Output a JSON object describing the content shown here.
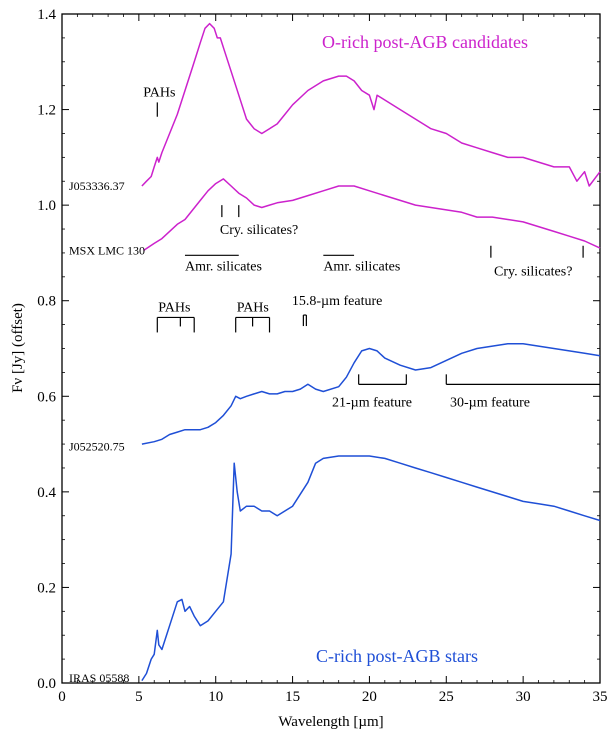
{
  "chart_data": {
    "type": "line",
    "xlabel": "Wavelength [µm]",
    "ylabel": "Fν [Jy] (offset)",
    "xlim": [
      0,
      35
    ],
    "ylim": [
      0,
      1.4
    ],
    "x_ticks": [
      0,
      5,
      10,
      15,
      20,
      25,
      30,
      35
    ],
    "y_ticks": [
      0.0,
      0.2,
      0.4,
      0.6,
      0.8,
      1.0,
      1.2,
      1.4
    ],
    "y_tick_labels": [
      "0.0",
      "0.2",
      "0.4",
      "0.6",
      "0.8",
      "1.0",
      "1.2",
      "1.4"
    ],
    "colors": {
      "o_rich": "#cc22cc",
      "c_rich": "#1f4fd6"
    },
    "group_titles": [
      {
        "text": "O-rich post-AGB candidates",
        "color": "#cc22cc"
      },
      {
        "text": "C-rich post-AGB stars",
        "color": "#1f4fd6"
      }
    ],
    "series": [
      {
        "name": "J053336.37",
        "color": "#cc22cc",
        "x": [
          5.2,
          5.5,
          5.8,
          6.0,
          6.2,
          6.3,
          6.5,
          7.0,
          7.5,
          8.0,
          8.5,
          9.0,
          9.3,
          9.6,
          9.9,
          10.1,
          10.3,
          10.6,
          11.0,
          11.5,
          12.0,
          12.5,
          13.0,
          13.5,
          14.0,
          14.5,
          15.0,
          16.0,
          17.0,
          18.0,
          18.5,
          19.0,
          19.5,
          20.0,
          20.3,
          20.5,
          21.0,
          22.0,
          23.0,
          24.0,
          25.0,
          26.0,
          27.0,
          28.0,
          29.0,
          30.0,
          31.0,
          32.0,
          33.0,
          33.5,
          34.0,
          34.3,
          35.0
        ],
        "y": [
          1.04,
          1.05,
          1.06,
          1.08,
          1.1,
          1.09,
          1.11,
          1.15,
          1.19,
          1.24,
          1.29,
          1.34,
          1.37,
          1.38,
          1.37,
          1.35,
          1.35,
          1.32,
          1.28,
          1.23,
          1.18,
          1.16,
          1.15,
          1.16,
          1.17,
          1.19,
          1.21,
          1.24,
          1.26,
          1.27,
          1.27,
          1.26,
          1.24,
          1.23,
          1.2,
          1.23,
          1.22,
          1.2,
          1.18,
          1.16,
          1.15,
          1.13,
          1.12,
          1.11,
          1.1,
          1.1,
          1.09,
          1.08,
          1.08,
          1.05,
          1.07,
          1.04,
          1.07
        ]
      },
      {
        "name": "MSX LMC 130",
        "color": "#cc22cc",
        "x": [
          5.3,
          6.0,
          6.5,
          7.0,
          7.5,
          8.0,
          8.5,
          9.0,
          9.5,
          10.0,
          10.5,
          11.0,
          11.5,
          12.0,
          12.5,
          13.0,
          13.5,
          14.0,
          15.0,
          16.0,
          17.0,
          18.0,
          19.0,
          20.0,
          21.0,
          22.0,
          23.0,
          24.0,
          25.0,
          26.0,
          27.0,
          28.0,
          29.0,
          30.0,
          31.0,
          32.0,
          33.0,
          34.0,
          35.0
        ],
        "y": [
          0.905,
          0.92,
          0.93,
          0.945,
          0.96,
          0.97,
          0.99,
          1.01,
          1.03,
          1.045,
          1.055,
          1.04,
          1.025,
          1.015,
          1.0,
          0.995,
          1.0,
          1.005,
          1.01,
          1.02,
          1.03,
          1.04,
          1.04,
          1.03,
          1.02,
          1.01,
          1.0,
          0.995,
          0.99,
          0.985,
          0.975,
          0.975,
          0.97,
          0.965,
          0.955,
          0.945,
          0.935,
          0.925,
          0.91
        ]
      },
      {
        "name": "J052520.75",
        "color": "#1f4fd6",
        "x": [
          5.2,
          6.0,
          6.5,
          7.0,
          7.5,
          8.0,
          8.5,
          9.0,
          9.5,
          10.0,
          10.5,
          11.0,
          11.3,
          11.6,
          12.0,
          12.5,
          13.0,
          13.5,
          14.0,
          14.5,
          15.0,
          15.5,
          16.0,
          16.5,
          17.0,
          18.0,
          18.5,
          19.0,
          19.5,
          20.0,
          20.5,
          21.0,
          22.0,
          23.0,
          24.0,
          25.0,
          26.0,
          27.0,
          28.0,
          29.0,
          30.0,
          31.0,
          32.0,
          33.0,
          34.0,
          35.0
        ],
        "y": [
          0.5,
          0.505,
          0.51,
          0.52,
          0.525,
          0.53,
          0.53,
          0.53,
          0.535,
          0.545,
          0.56,
          0.58,
          0.6,
          0.595,
          0.6,
          0.605,
          0.61,
          0.605,
          0.605,
          0.61,
          0.61,
          0.615,
          0.625,
          0.615,
          0.61,
          0.62,
          0.64,
          0.67,
          0.695,
          0.7,
          0.695,
          0.68,
          0.665,
          0.655,
          0.66,
          0.675,
          0.69,
          0.7,
          0.705,
          0.71,
          0.71,
          0.705,
          0.7,
          0.695,
          0.69,
          0.685
        ]
      },
      {
        "name": "IRAS 05588",
        "color": "#1f4fd6",
        "x": [
          5.2,
          5.5,
          5.8,
          6.0,
          6.2,
          6.3,
          6.5,
          7.0,
          7.5,
          7.8,
          8.0,
          8.3,
          8.6,
          9.0,
          9.5,
          10.0,
          10.5,
          11.0,
          11.2,
          11.4,
          11.6,
          12.0,
          12.5,
          13.0,
          13.5,
          14.0,
          15.0,
          16.0,
          16.5,
          17.0,
          18.0,
          19.0,
          20.0,
          21.0,
          22.0,
          23.0,
          24.0,
          25.0,
          26.0,
          27.0,
          28.0,
          29.0,
          30.0,
          31.0,
          32.0,
          33.0,
          34.0,
          35.0
        ],
        "y": [
          0.005,
          0.02,
          0.05,
          0.06,
          0.11,
          0.08,
          0.07,
          0.12,
          0.17,
          0.175,
          0.15,
          0.16,
          0.14,
          0.12,
          0.13,
          0.15,
          0.17,
          0.27,
          0.46,
          0.4,
          0.36,
          0.37,
          0.37,
          0.36,
          0.36,
          0.35,
          0.37,
          0.42,
          0.46,
          0.47,
          0.475,
          0.475,
          0.475,
          0.47,
          0.46,
          0.45,
          0.44,
          0.43,
          0.42,
          0.41,
          0.4,
          0.39,
          0.38,
          0.375,
          0.37,
          0.36,
          0.35,
          0.34
        ]
      }
    ],
    "annotations": {
      "pahs_o": {
        "text": "PAHs",
        "x": 6.2,
        "y_top": 1.215,
        "y_bottom": 1.185
      },
      "cry_sil_1": {
        "text": "Cry. silicates?",
        "ticks_x": [
          10.4,
          11.5
        ],
        "y_top": 1.0,
        "y_bottom": 0.975
      },
      "amr_sil_1": {
        "text": "Amr. silicates",
        "x_from": 8.0,
        "x_to": 11.5,
        "y": 0.895
      },
      "amr_sil_2": {
        "text": "Amr. silicates",
        "x_from": 17.0,
        "x_to": 19.0,
        "y": 0.895
      },
      "cry_sil_2": {
        "text": "Cry. silicates?",
        "ticks_x": [
          27.9,
          33.9
        ],
        "y_top": 0.915,
        "y_bottom": 0.89
      },
      "pahs_c1": {
        "text": "PAHs",
        "ticks_x": [
          6.2,
          7.7,
          8.6
        ],
        "y_top": 0.765
      },
      "pahs_c2": {
        "text": "PAHs",
        "ticks_x": [
          11.3,
          12.4,
          13.5
        ],
        "y_top": 0.765
      },
      "feature_158": {
        "text": "15.8-µm feature",
        "x": 15.8,
        "y_top": 0.77
      },
      "feature_21": {
        "text": "21-µm feature",
        "x_from": 19.3,
        "x_to": 22.4,
        "y": 0.625
      },
      "feature_30": {
        "text": "30-µm feature",
        "x_from": 25.0,
        "x_to": 35.0,
        "y": 0.625
      }
    },
    "star_labels": [
      {
        "text": "J053336.37",
        "y": 1.04
      },
      {
        "text": "MSX LMC 130",
        "y": 0.905
      },
      {
        "text": "J052520.75",
        "y": 0.495
      },
      {
        "text": "IRAS 05588",
        "y": 0.01
      }
    ]
  }
}
